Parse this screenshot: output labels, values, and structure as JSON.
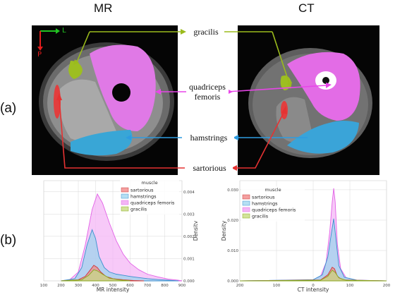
{
  "titles": {
    "mr": "MR",
    "ct": "CT"
  },
  "panels": {
    "a": "(a)",
    "b": "(b)"
  },
  "orientation": {
    "left": "L",
    "posterior": "P"
  },
  "muscle_labels": {
    "gracilis": "gracilis",
    "quadriceps_line1": "quadriceps",
    "quadriceps_line2": "femoris",
    "hamstrings": "hamstrings",
    "sartorious": "sartorious"
  },
  "colors": {
    "gracilis": "#9bbb1c",
    "quadriceps": "#e262e6",
    "hamstrings": "#3aa3d7",
    "sartorious": "#e43b3b",
    "arrow_green": "#9bbb1c",
    "arrow_magenta": "#e845e8",
    "arrow_blue": "#2e9be0",
    "arrow_red": "#e53232"
  },
  "chart_data": [
    {
      "type": "area",
      "legend_title": "muscle",
      "legend": [
        "sartorious",
        "hamstrings",
        "quadriceps femoris",
        "gracilis"
      ],
      "xlabel": "MR intensity",
      "ylabel": "Density",
      "x_ticks": [
        100,
        200,
        300,
        400,
        500,
        600,
        700,
        800,
        900
      ],
      "y_ticks": [
        "0.000",
        "0.001",
        "0.002",
        "0.003",
        "0.004"
      ],
      "xlim": [
        100,
        900
      ],
      "ylim": [
        0,
        0.0045
      ],
      "grid": true,
      "legend_position": "top-right",
      "series": [
        {
          "name": "quadriceps femoris",
          "x": [
            200,
            250,
            300,
            340,
            380,
            410,
            440,
            480,
            520,
            560,
            600,
            650,
            700,
            760,
            820,
            880,
            900
          ],
          "y": [
            0,
            5e-05,
            0.0004,
            0.0016,
            0.0032,
            0.0039,
            0.0035,
            0.0026,
            0.0018,
            0.0012,
            0.0008,
            0.0005,
            0.0003,
            0.00018,
            8e-05,
            3e-05,
            0
          ]
        },
        {
          "name": "hamstrings",
          "x": [
            200,
            280,
            320,
            350,
            380,
            400,
            420,
            450,
            480,
            520,
            560,
            600,
            650,
            700,
            760,
            820,
            880
          ],
          "y": [
            0,
            0.0001,
            0.0006,
            0.0016,
            0.0023,
            0.0019,
            0.0011,
            0.0006,
            0.0004,
            0.0003,
            0.00025,
            0.0002,
            0.00015,
            0.0001,
            6e-05,
            3e-05,
            0
          ]
        },
        {
          "name": "sartorious",
          "x": [
            200,
            300,
            340,
            370,
            390,
            410,
            430,
            460,
            500,
            560,
            620,
            680
          ],
          "y": [
            0,
            5e-05,
            0.0002,
            0.0005,
            0.0007,
            0.0006,
            0.0004,
            0.0002,
            0.0001,
            5e-05,
            2e-05,
            0
          ]
        },
        {
          "name": "gracilis",
          "x": [
            200,
            320,
            360,
            390,
            410,
            440,
            480,
            540,
            600
          ],
          "y": [
            0,
            5e-05,
            0.00025,
            0.0005,
            0.00045,
            0.0003,
            0.00012,
            4e-05,
            0
          ]
        }
      ]
    },
    {
      "type": "area",
      "legend_title": "muscle",
      "legend": [
        "sartorious",
        "hamstrings",
        "quadriceps femoris",
        "gracilis"
      ],
      "xlabel": "CT intensity",
      "ylabel": "Density",
      "x_ticks": [
        -200,
        -100,
        0,
        100,
        200
      ],
      "x_tick_labels": [
        "200",
        "100",
        "0",
        "100",
        "200"
      ],
      "y_ticks": [
        "0.000",
        "0.010",
        "0.020",
        "0.030"
      ],
      "xlim": [
        -200,
        200
      ],
      "ylim": [
        0,
        0.033
      ],
      "grid": true,
      "legend_position": "top-left",
      "series": [
        {
          "name": "quadriceps femoris",
          "x": [
            -200,
            0,
            20,
            35,
            45,
            52,
            56,
            60,
            66,
            75,
            90,
            120,
            200
          ],
          "y": [
            0,
            0.0003,
            0.0015,
            0.006,
            0.016,
            0.026,
            0.0305,
            0.026,
            0.012,
            0.004,
            0.001,
            0.0002,
            0
          ]
        },
        {
          "name": "hamstrings",
          "x": [
            -200,
            0,
            25,
            40,
            50,
            56,
            62,
            70,
            85,
            120,
            200
          ],
          "y": [
            0,
            0.0004,
            0.002,
            0.008,
            0.016,
            0.0205,
            0.014,
            0.005,
            0.0012,
            0.0002,
            0
          ]
        },
        {
          "name": "sartorious",
          "x": [
            -200,
            20,
            40,
            52,
            58,
            66,
            80,
            200
          ],
          "y": [
            0,
            0.0003,
            0.002,
            0.0045,
            0.004,
            0.0015,
            0.0003,
            0
          ]
        },
        {
          "name": "gracilis",
          "x": [
            -200,
            20,
            40,
            52,
            60,
            70,
            90,
            200
          ],
          "y": [
            0,
            0.0002,
            0.0015,
            0.0035,
            0.0028,
            0.001,
            0.0002,
            0
          ]
        }
      ]
    }
  ]
}
